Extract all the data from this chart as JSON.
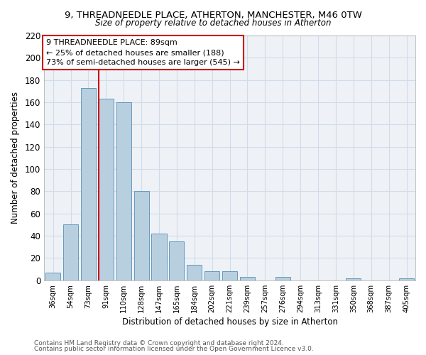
{
  "title": "9, THREADNEEDLE PLACE, ATHERTON, MANCHESTER, M46 0TW",
  "subtitle": "Size of property relative to detached houses in Atherton",
  "xlabel": "Distribution of detached houses by size in Atherton",
  "ylabel": "Number of detached properties",
  "bar_labels": [
    "36sqm",
    "54sqm",
    "73sqm",
    "91sqm",
    "110sqm",
    "128sqm",
    "147sqm",
    "165sqm",
    "184sqm",
    "202sqm",
    "221sqm",
    "239sqm",
    "257sqm",
    "276sqm",
    "294sqm",
    "313sqm",
    "331sqm",
    "350sqm",
    "368sqm",
    "387sqm",
    "405sqm"
  ],
  "bar_values": [
    7,
    50,
    173,
    163,
    160,
    80,
    42,
    35,
    14,
    8,
    8,
    3,
    0,
    3,
    0,
    0,
    0,
    2,
    0,
    0,
    2
  ],
  "bar_color": "#b8cfe0",
  "bar_edge_color": "#6699bb",
  "reference_line_index": 3,
  "reference_line_color": "#cc0000",
  "ylim": [
    0,
    220
  ],
  "yticks": [
    0,
    20,
    40,
    60,
    80,
    100,
    120,
    140,
    160,
    180,
    200,
    220
  ],
  "annotation_line1": "9 THREADNEEDLE PLACE: 89sqm",
  "annotation_line2": "← 25% of detached houses are smaller (188)",
  "annotation_line3": "73% of semi-detached houses are larger (545) →",
  "footer_line1": "Contains HM Land Registry data © Crown copyright and database right 2024.",
  "footer_line2": "Contains public sector information licensed under the Open Government Licence v3.0.",
  "grid_color": "#d0dce8",
  "background_color": "#eef2f7",
  "plot_bg_color": "#eef2f7"
}
